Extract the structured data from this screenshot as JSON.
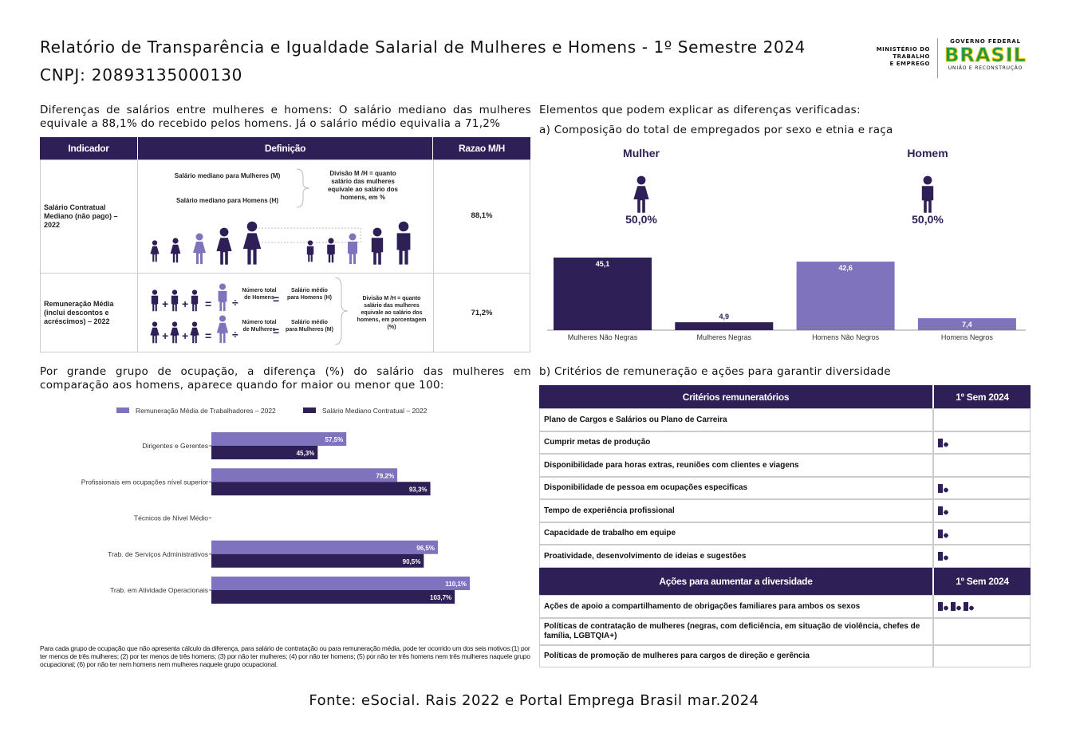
{
  "header": {
    "title": "Relatório de Transparência e Igualdade Salarial de Mulheres e Homens - 1º Semestre 2024",
    "cnpj": "CNPJ: 20893135000130",
    "ministry": [
      "MINISTÉRIO DO",
      "TRABALHO",
      "E EMPREGO"
    ],
    "government": "GOVERNO FEDERAL",
    "brand": "BRASIL",
    "motto": "UNIÃO E RECONSTRUÇÃO"
  },
  "intro": "Diferenças de salários entre mulheres e homens: O salário mediano das mulheres equivale a 88,1% do recebido pelos homens. Já o salário médio equivalia a 71,2%",
  "indicator_table": {
    "columns": [
      "Indicador",
      "Definição",
      "Razao M/H"
    ],
    "rows": [
      {
        "indicator": "Salário Contratual Mediano (não pago) – 2022",
        "value": "88,1%",
        "definition": [
          "Salário mediano para Mulheres (M)",
          "Salário mediano para Homens (H)",
          "Divisão M /H = quanto salário das mulheres equivale ao salário dos homens, em %"
        ]
      },
      {
        "indicator": "Remuneração Média (inclui descontos e acréscimos) – 2022",
        "value": "71,2%",
        "definition": [
          "Número total de Homens",
          "Salário médio para Homens (H)",
          "Número total de Mulheres",
          "Salário médio para Mulheres (M)",
          "Divisão M /H = quanto salário das mulheres equivale ao salário dos homens, em porcentagem (%)"
        ]
      }
    ]
  },
  "elements_title": "Elementos que podem explicar as diferenças verificadas:",
  "composition": {
    "heading": "a) Composição do total de empregados por sexo e etnia e raça",
    "groups": [
      {
        "label": "Mulher",
        "share": "50,0%"
      },
      {
        "label": "Homem",
        "share": "50,0%"
      }
    ]
  },
  "chart_data": [
    {
      "type": "bar",
      "categories": [
        "Mulheres Não Negras",
        "Mulheres Negras",
        "Homens Não Negros",
        "Homens Negros"
      ],
      "values": [
        45.1,
        4.9,
        42.6,
        7.4
      ],
      "value_labels": [
        "45,1",
        "4,9",
        "42,6",
        "7,4"
      ],
      "colors": [
        "#2e1f57",
        "#2e1f57",
        "#8073bd",
        "#8073bd"
      ]
    },
    {
      "type": "hbar",
      "categories": [
        "Dirigentes e Gerentes",
        "Profissionais em ocupações nível superior",
        "Técnicos de Nível Médio",
        "Trab. de Serviços Administrativos",
        "Trab. em Atividade Operacionais"
      ],
      "series": [
        {
          "name": "Remuneração Média de Trabalhadores – 2022",
          "color": "#8073bd",
          "values": [
            57.5,
            79.2,
            null,
            96.5,
            110.1
          ],
          "value_labels": [
            "57,5%",
            "79,2%",
            null,
            "96,5%",
            "110,1%"
          ]
        },
        {
          "name": "Salário Mediano Contratual – 2022",
          "color": "#2e1f57",
          "values": [
            45.3,
            93.3,
            null,
            90.5,
            103.7
          ],
          "value_labels": [
            "45,3%",
            "93,3%",
            null,
            "90,5%",
            "103,7%"
          ]
        }
      ]
    }
  ],
  "occupation_text": "Por grande grupo de ocupação, a diferença (%) do salário das mulheres em comparação aos homens, aparece quando for maior ou menor que 100:",
  "footnote": "Para cada grupo de ocupação que não apresenta cálculo da diferença, para salário de contratação ou para remuneração média, pode ter ocorrido um dos seis motivos:(1) por ter menos de três mulheres; (2) por ter menos de três homens; (3) por não ter mulheres; (4) por não ter homens; (5) por não ter três homens nem três mulheres naquele grupo ocupacional; (6) por não ter nem homens nem mulheres naquele grupo ocupacional.",
  "criteria": {
    "heading": "b) Critérios de remuneração e ações para garantir diversidade",
    "sections": [
      {
        "columns": [
          "Critérios remuneratórios",
          "1º Sem 2024"
        ],
        "rows": [
          "Plano de Cargos e Salários ou Plano de Carreira",
          "Cumprir metas de produção",
          "Disponibilidade para horas extras, reuniões com clientes e viagens",
          "Disponibilidade de pessoa em ocupações especificas",
          "Tempo de experiência profissional",
          "Capacidade de trabalho em equipe",
          "Proatividade, desenvolvimento de ideias e sugestões"
        ]
      },
      {
        "columns": [
          "Ações para aumentar a diversidade",
          "1º Sem 2024"
        ],
        "rows": [
          "Ações de apoio a compartilhamento de obrigações familiares para ambos os sexos",
          "Políticas de contratação de mulheres (negras, com deficiência, em situação de violência, chefes de família, LGBTQIA+)",
          "Políticas de promoção de mulheres para cargos de direção e gerência"
        ]
      }
    ]
  },
  "source": "Fonte: eSocial. Rais 2022 e Portal Emprega Brasil mar.2024"
}
